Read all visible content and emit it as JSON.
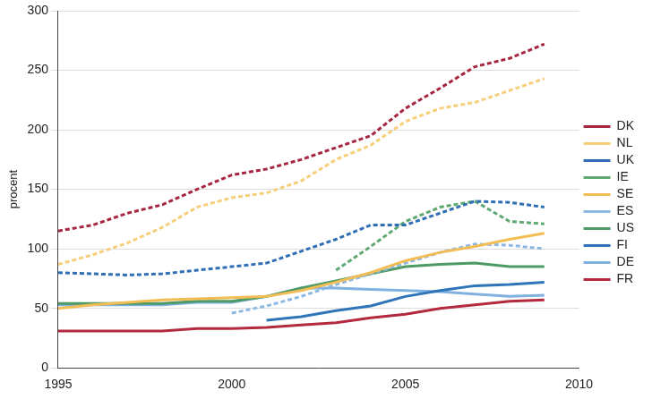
{
  "chart_data": {
    "type": "line",
    "y_label": "procent",
    "x": [
      1995,
      1996,
      1997,
      1998,
      1999,
      2000,
      2001,
      2002,
      2003,
      2004,
      2005,
      2006,
      2007,
      2008,
      2009
    ],
    "xlim": [
      1995,
      2010
    ],
    "xticks": [
      1995,
      2000,
      2005,
      2010
    ],
    "ylim": [
      0,
      300
    ],
    "yticks": [
      0,
      50,
      100,
      150,
      200,
      250,
      300
    ],
    "grid": true,
    "legend": "right",
    "series": [
      {
        "name": "DK",
        "color": "#a6253f",
        "line_style": "dashed",
        "values": [
          115,
          120,
          130,
          137,
          150,
          162,
          167,
          175,
          185,
          195,
          218,
          235,
          253,
          260,
          272
        ]
      },
      {
        "name": "NL",
        "color": "#f7cf7a",
        "line_style": "dashed",
        "values": [
          87,
          95,
          105,
          118,
          135,
          143,
          147,
          157,
          175,
          187,
          207,
          218,
          223,
          233,
          243
        ]
      },
      {
        "name": "UK",
        "color": "#2f6db5",
        "line_style": "dashed",
        "values": [
          80,
          79,
          78,
          79,
          82,
          85,
          88,
          98,
          108,
          120,
          120,
          130,
          140,
          139,
          135
        ]
      },
      {
        "name": "IE",
        "color": "#5fa872",
        "line_style": "dashed",
        "values": [
          null,
          null,
          null,
          null,
          null,
          null,
          null,
          null,
          82,
          102,
          123,
          135,
          140,
          123,
          121
        ]
      },
      {
        "name": "SE",
        "color": "#f3bd55",
        "line_style": "solid",
        "values": [
          50,
          53,
          55,
          57,
          58,
          59,
          60,
          65,
          72,
          80,
          90,
          97,
          102,
          108,
          113
        ]
      },
      {
        "name": "ES",
        "color": "#8cb8e2",
        "line_style": "dashed",
        "values": [
          null,
          null,
          null,
          null,
          null,
          46,
          52,
          60,
          70,
          79,
          88,
          97,
          104,
          103,
          100
        ]
      },
      {
        "name": "US",
        "color": "#4e9a64",
        "line_style": "solid",
        "values": [
          54,
          54,
          54,
          54,
          56,
          56,
          60,
          67,
          73,
          79,
          85,
          87,
          88,
          85,
          85
        ]
      },
      {
        "name": "FI",
        "color": "#2e74b8",
        "line_style": "solid",
        "values": [
          null,
          null,
          null,
          null,
          null,
          null,
          40,
          43,
          48,
          52,
          60,
          65,
          69,
          70,
          72
        ]
      },
      {
        "name": "DE",
        "color": "#7fb0e0",
        "line_style": "solid",
        "values": [
          53,
          53,
          53,
          53,
          55,
          55,
          60,
          67,
          67,
          66,
          65,
          64,
          62,
          60,
          61
        ]
      },
      {
        "name": "FR",
        "color": "#b32a3f",
        "line_style": "solid",
        "values": [
          31,
          31,
          31,
          31,
          33,
          33,
          34,
          36,
          38,
          42,
          45,
          50,
          53,
          56,
          57
        ]
      }
    ]
  }
}
